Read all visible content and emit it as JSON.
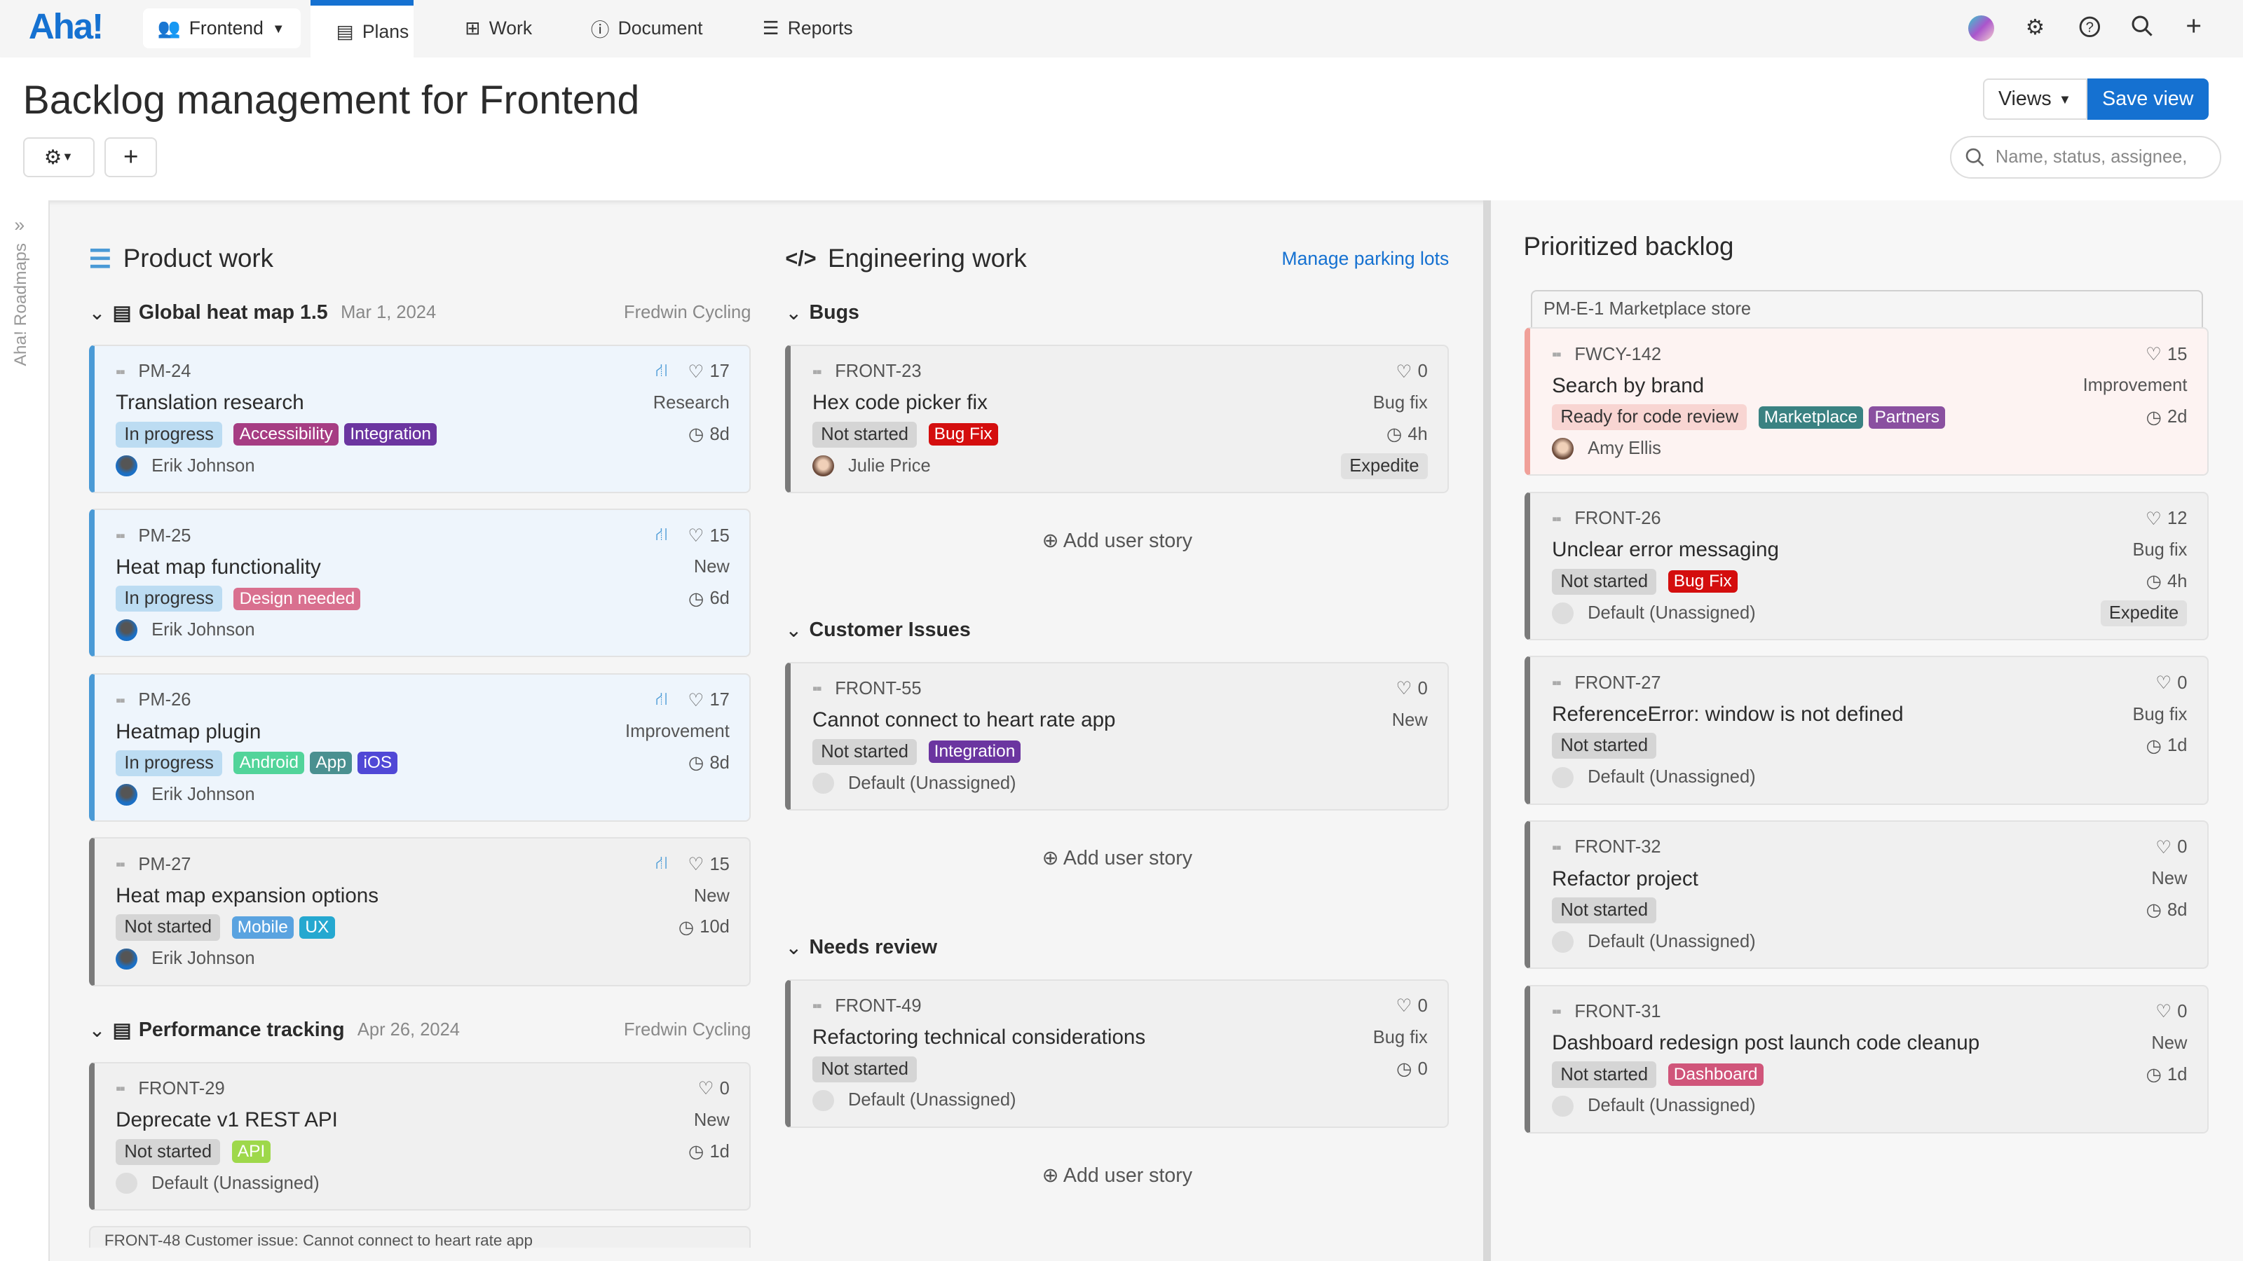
{
  "nav": {
    "logo": "Aha!",
    "workspace": "Frontend",
    "tabs": [
      {
        "label": "Plans",
        "icon": "calendar-icon",
        "active": true
      },
      {
        "label": "Work",
        "icon": "grid-icon"
      },
      {
        "label": "Document",
        "icon": "info-icon"
      },
      {
        "label": "Reports",
        "icon": "reports-icon"
      }
    ]
  },
  "header": {
    "title": "Backlog management for Frontend",
    "views_label": "Views",
    "save_label": "Save view",
    "search_placeholder": "Name, status, assignee,"
  },
  "sidebar": {
    "label": "Aha! Roadmaps"
  },
  "product": {
    "title": "Product work",
    "groups": [
      {
        "name": "Global heat map 1.5",
        "date": "Mar 1, 2024",
        "owner": "Fredwin Cycling",
        "cards": [
          {
            "id": "PM-24",
            "title": "Translation research",
            "type": "Research",
            "status": "In progress",
            "variant": "inprog",
            "tags": [
              {
                "label": "Accessibility",
                "color": "#a63d83"
              },
              {
                "label": "Integration",
                "color": "#6b35a0"
              }
            ],
            "estimate": "8d",
            "score": "17",
            "hierarchy": true,
            "assignee": "Erik Johnson"
          },
          {
            "id": "PM-25",
            "title": "Heat map functionality",
            "type": "New",
            "status": "In progress",
            "variant": "inprog",
            "tags": [
              {
                "label": "Design needed",
                "color": "#d9708f"
              }
            ],
            "estimate": "6d",
            "score": "15",
            "hierarchy": true,
            "assignee": "Erik Johnson"
          },
          {
            "id": "PM-26",
            "title": "Heatmap plugin",
            "type": "Improvement",
            "status": "In progress",
            "variant": "inprog",
            "tags": [
              {
                "label": "Android",
                "color": "#52d49a"
              },
              {
                "label": "App",
                "color": "#4a9090"
              },
              {
                "label": "iOS",
                "color": "#5048d6"
              }
            ],
            "estimate": "8d",
            "score": "17",
            "hierarchy": true,
            "assignee": "Erik Johnson"
          },
          {
            "id": "PM-27",
            "title": "Heat map expansion options",
            "type": "New",
            "status": "Not started",
            "variant": "",
            "tags": [
              {
                "label": "Mobile",
                "color": "#5aa3e0"
              },
              {
                "label": "UX",
                "color": "#25a8d0"
              }
            ],
            "estimate": "10d",
            "score": "15",
            "hierarchy": true,
            "assignee": "Erik Johnson"
          }
        ]
      },
      {
        "name": "Performance tracking",
        "date": "Apr 26, 2024",
        "owner": "Fredwin Cycling",
        "cards": [
          {
            "id": "FRONT-29",
            "title": "Deprecate v1 REST API",
            "type": "New",
            "status": "Not started",
            "variant": "",
            "tags": [
              {
                "label": "API",
                "color": "#9ed84a"
              }
            ],
            "estimate": "1d",
            "score": "0",
            "assignee": "Default (Unassigned)"
          }
        ],
        "partial": "FRONT-48  Customer issue: Cannot connect to heart rate app"
      }
    ]
  },
  "engineering": {
    "title": "Engineering work",
    "manage_link": "Manage parking lots",
    "add_label": "Add user story",
    "groups": [
      {
        "name": "Bugs",
        "cards": [
          {
            "id": "FRONT-23",
            "title": "Hex code picker fix",
            "type": "Bug fix",
            "status": "Not started",
            "variant": "",
            "tags": [
              {
                "label": "Bug Fix",
                "color": "#d40e0e"
              }
            ],
            "estimate": "4h",
            "score": "0",
            "assignee": "Julie Price",
            "badge": "Expedite"
          }
        ]
      },
      {
        "name": "Customer Issues",
        "cards": [
          {
            "id": "FRONT-55",
            "title": "Cannot connect to heart rate app",
            "type": "New",
            "status": "Not started",
            "variant": "",
            "tags": [
              {
                "label": "Integration",
                "color": "#6b35a0"
              }
            ],
            "score": "0",
            "assignee": "Default (Unassigned)"
          }
        ]
      },
      {
        "name": "Needs review",
        "cards": [
          {
            "id": "FRONT-49",
            "title": "Refactoring technical considerations",
            "type": "Bug fix",
            "status": "Not started",
            "variant": "",
            "tags": [],
            "estimate": "0",
            "score": "0",
            "assignee": "Default (Unassigned)"
          }
        ]
      }
    ]
  },
  "backlog": {
    "title": "Prioritized backlog",
    "epic": "PM-E-1 Marketplace store",
    "cards": [
      {
        "id": "FWCY-142",
        "title": "Search by brand",
        "type": "Improvement",
        "status": "Ready for code review",
        "variant": "pink",
        "tags": [
          {
            "label": "Marketplace",
            "color": "#3a8282"
          },
          {
            "label": "Partners",
            "color": "#8a50a0"
          }
        ],
        "estimate": "2d",
        "score": "15",
        "assignee": "Amy Ellis"
      },
      {
        "id": "FRONT-26",
        "title": "Unclear error messaging",
        "type": "Bug fix",
        "status": "Not started",
        "variant": "",
        "tags": [
          {
            "label": "Bug Fix",
            "color": "#d40e0e"
          }
        ],
        "estimate": "4h",
        "score": "12",
        "assignee": "Default (Unassigned)",
        "badge": "Expedite"
      },
      {
        "id": "FRONT-27",
        "title": "ReferenceError: window is not defined",
        "type": "Bug fix",
        "status": "Not started",
        "variant": "",
        "tags": [],
        "estimate": "1d",
        "score": "0",
        "assignee": "Default (Unassigned)"
      },
      {
        "id": "FRONT-32",
        "title": "Refactor project",
        "type": "New",
        "status": "Not started",
        "variant": "",
        "tags": [],
        "estimate": "8d",
        "score": "0",
        "assignee": "Default (Unassigned)"
      },
      {
        "id": "FRONT-31",
        "title": "Dashboard redesign post launch code cleanup",
        "type": "New",
        "status": "Not started",
        "variant": "",
        "tags": [
          {
            "label": "Dashboard",
            "color": "#d0557a"
          }
        ],
        "estimate": "1d",
        "score": "0",
        "assignee": "Default (Unassigned)"
      }
    ]
  },
  "colors": {
    "accent": "#1571d1",
    "in_progress": "#bcdcf2",
    "not_started": "#d5d5d5",
    "ready_review": "#f8d5d2"
  }
}
